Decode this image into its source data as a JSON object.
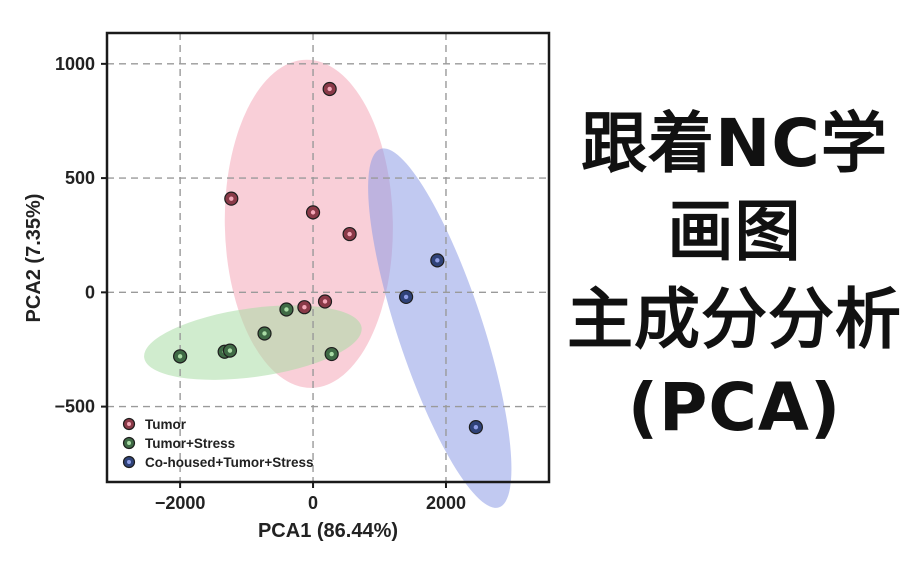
{
  "chart_data": {
    "type": "scatter",
    "xlabel": "PCA1 (86.44%)",
    "ylabel": "PCA2 (7.35%)",
    "xlim": [
      -3100,
      3550
    ],
    "ylim": [
      -830,
      1135
    ],
    "xticks": [
      -2000,
      0,
      2000
    ],
    "xtick_labels": [
      "−2000",
      "0",
      "2000"
    ],
    "yticks": [
      -500,
      0,
      500,
      1000
    ],
    "ytick_labels": [
      "−500",
      "0",
      "500",
      "1000"
    ],
    "grid": true,
    "legend_position": "bottom-left",
    "series": [
      {
        "name": "Tumor",
        "color": "#8a3a48",
        "ellipse_color": "#f4a7b8",
        "points": [
          [
            250,
            890
          ],
          [
            -1230,
            410
          ],
          [
            0,
            350
          ],
          [
            550,
            255
          ],
          [
            -130,
            -65
          ],
          [
            180,
            -40
          ]
        ]
      },
      {
        "name": "Tumor+Stress",
        "color": "#3f6a45",
        "ellipse_color": "#a9dca5",
        "points": [
          [
            -2000,
            -280
          ],
          [
            -1330,
            -260
          ],
          [
            -1250,
            -255
          ],
          [
            -730,
            -180
          ],
          [
            -400,
            -75
          ],
          [
            280,
            -270
          ]
        ]
      },
      {
        "name": "Co-housed+Tumor+Stress",
        "color": "#2f4278",
        "ellipse_color": "#8e9de6",
        "points": [
          [
            1870,
            140
          ],
          [
            1400,
            -20
          ],
          [
            2450,
            -590
          ]
        ]
      }
    ]
  },
  "headline": {
    "line1": "跟着NC学",
    "line2": "画图",
    "line3": "主成分分析",
    "line4": "(PCA)"
  }
}
